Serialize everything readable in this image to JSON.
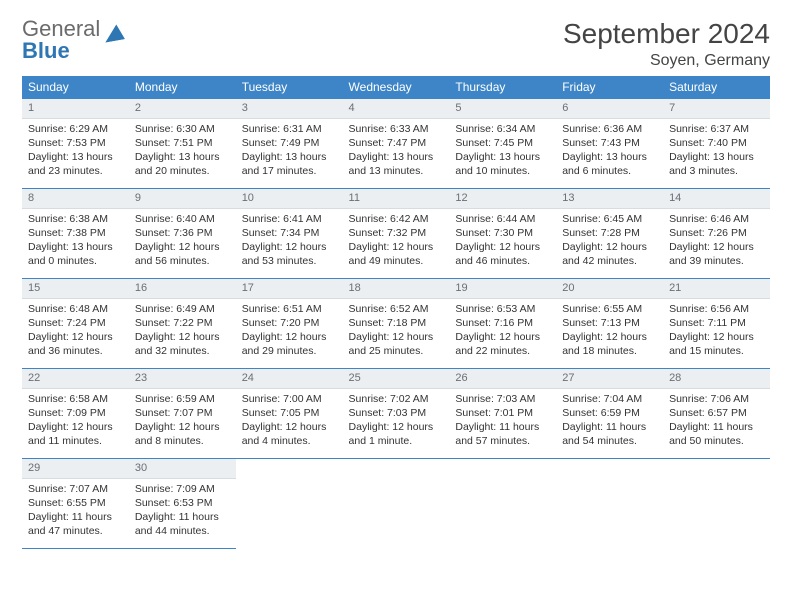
{
  "brand": {
    "general": "General",
    "blue": "Blue"
  },
  "title": "September 2024",
  "location": "Soyen, Germany",
  "day_headers": [
    "Sunday",
    "Monday",
    "Tuesday",
    "Wednesday",
    "Thursday",
    "Friday",
    "Saturday"
  ],
  "colors": {
    "header_bg": "#3d85c6",
    "header_text": "#ffffff",
    "border": "#3d85c6",
    "daynum_bg": "#eceff2",
    "daynum_text": "#6a6f75",
    "body_bg": "#ffffff",
    "brand_gray": "#6b6b6b",
    "brand_blue": "#2f77b3"
  },
  "typography": {
    "title_fontsize": 28,
    "location_fontsize": 16,
    "header_fontsize": 12,
    "cell_fontsize": 10.5,
    "logo_fontsize": 22
  },
  "weeks": [
    [
      {
        "n": "1",
        "sunrise": "Sunrise: 6:29 AM",
        "sunset": "Sunset: 7:53 PM",
        "daylight": "Daylight: 13 hours and 23 minutes."
      },
      {
        "n": "2",
        "sunrise": "Sunrise: 6:30 AM",
        "sunset": "Sunset: 7:51 PM",
        "daylight": "Daylight: 13 hours and 20 minutes."
      },
      {
        "n": "3",
        "sunrise": "Sunrise: 6:31 AM",
        "sunset": "Sunset: 7:49 PM",
        "daylight": "Daylight: 13 hours and 17 minutes."
      },
      {
        "n": "4",
        "sunrise": "Sunrise: 6:33 AM",
        "sunset": "Sunset: 7:47 PM",
        "daylight": "Daylight: 13 hours and 13 minutes."
      },
      {
        "n": "5",
        "sunrise": "Sunrise: 6:34 AM",
        "sunset": "Sunset: 7:45 PM",
        "daylight": "Daylight: 13 hours and 10 minutes."
      },
      {
        "n": "6",
        "sunrise": "Sunrise: 6:36 AM",
        "sunset": "Sunset: 7:43 PM",
        "daylight": "Daylight: 13 hours and 6 minutes."
      },
      {
        "n": "7",
        "sunrise": "Sunrise: 6:37 AM",
        "sunset": "Sunset: 7:40 PM",
        "daylight": "Daylight: 13 hours and 3 minutes."
      }
    ],
    [
      {
        "n": "8",
        "sunrise": "Sunrise: 6:38 AM",
        "sunset": "Sunset: 7:38 PM",
        "daylight": "Daylight: 13 hours and 0 minutes."
      },
      {
        "n": "9",
        "sunrise": "Sunrise: 6:40 AM",
        "sunset": "Sunset: 7:36 PM",
        "daylight": "Daylight: 12 hours and 56 minutes."
      },
      {
        "n": "10",
        "sunrise": "Sunrise: 6:41 AM",
        "sunset": "Sunset: 7:34 PM",
        "daylight": "Daylight: 12 hours and 53 minutes."
      },
      {
        "n": "11",
        "sunrise": "Sunrise: 6:42 AM",
        "sunset": "Sunset: 7:32 PM",
        "daylight": "Daylight: 12 hours and 49 minutes."
      },
      {
        "n": "12",
        "sunrise": "Sunrise: 6:44 AM",
        "sunset": "Sunset: 7:30 PM",
        "daylight": "Daylight: 12 hours and 46 minutes."
      },
      {
        "n": "13",
        "sunrise": "Sunrise: 6:45 AM",
        "sunset": "Sunset: 7:28 PM",
        "daylight": "Daylight: 12 hours and 42 minutes."
      },
      {
        "n": "14",
        "sunrise": "Sunrise: 6:46 AM",
        "sunset": "Sunset: 7:26 PM",
        "daylight": "Daylight: 12 hours and 39 minutes."
      }
    ],
    [
      {
        "n": "15",
        "sunrise": "Sunrise: 6:48 AM",
        "sunset": "Sunset: 7:24 PM",
        "daylight": "Daylight: 12 hours and 36 minutes."
      },
      {
        "n": "16",
        "sunrise": "Sunrise: 6:49 AM",
        "sunset": "Sunset: 7:22 PM",
        "daylight": "Daylight: 12 hours and 32 minutes."
      },
      {
        "n": "17",
        "sunrise": "Sunrise: 6:51 AM",
        "sunset": "Sunset: 7:20 PM",
        "daylight": "Daylight: 12 hours and 29 minutes."
      },
      {
        "n": "18",
        "sunrise": "Sunrise: 6:52 AM",
        "sunset": "Sunset: 7:18 PM",
        "daylight": "Daylight: 12 hours and 25 minutes."
      },
      {
        "n": "19",
        "sunrise": "Sunrise: 6:53 AM",
        "sunset": "Sunset: 7:16 PM",
        "daylight": "Daylight: 12 hours and 22 minutes."
      },
      {
        "n": "20",
        "sunrise": "Sunrise: 6:55 AM",
        "sunset": "Sunset: 7:13 PM",
        "daylight": "Daylight: 12 hours and 18 minutes."
      },
      {
        "n": "21",
        "sunrise": "Sunrise: 6:56 AM",
        "sunset": "Sunset: 7:11 PM",
        "daylight": "Daylight: 12 hours and 15 minutes."
      }
    ],
    [
      {
        "n": "22",
        "sunrise": "Sunrise: 6:58 AM",
        "sunset": "Sunset: 7:09 PM",
        "daylight": "Daylight: 12 hours and 11 minutes."
      },
      {
        "n": "23",
        "sunrise": "Sunrise: 6:59 AM",
        "sunset": "Sunset: 7:07 PM",
        "daylight": "Daylight: 12 hours and 8 minutes."
      },
      {
        "n": "24",
        "sunrise": "Sunrise: 7:00 AM",
        "sunset": "Sunset: 7:05 PM",
        "daylight": "Daylight: 12 hours and 4 minutes."
      },
      {
        "n": "25",
        "sunrise": "Sunrise: 7:02 AM",
        "sunset": "Sunset: 7:03 PM",
        "daylight": "Daylight: 12 hours and 1 minute."
      },
      {
        "n": "26",
        "sunrise": "Sunrise: 7:03 AM",
        "sunset": "Sunset: 7:01 PM",
        "daylight": "Daylight: 11 hours and 57 minutes."
      },
      {
        "n": "27",
        "sunrise": "Sunrise: 7:04 AM",
        "sunset": "Sunset: 6:59 PM",
        "daylight": "Daylight: 11 hours and 54 minutes."
      },
      {
        "n": "28",
        "sunrise": "Sunrise: 7:06 AM",
        "sunset": "Sunset: 6:57 PM",
        "daylight": "Daylight: 11 hours and 50 minutes."
      }
    ],
    [
      {
        "n": "29",
        "sunrise": "Sunrise: 7:07 AM",
        "sunset": "Sunset: 6:55 PM",
        "daylight": "Daylight: 11 hours and 47 minutes."
      },
      {
        "n": "30",
        "sunrise": "Sunrise: 7:09 AM",
        "sunset": "Sunset: 6:53 PM",
        "daylight": "Daylight: 11 hours and 44 minutes."
      },
      null,
      null,
      null,
      null,
      null
    ]
  ]
}
